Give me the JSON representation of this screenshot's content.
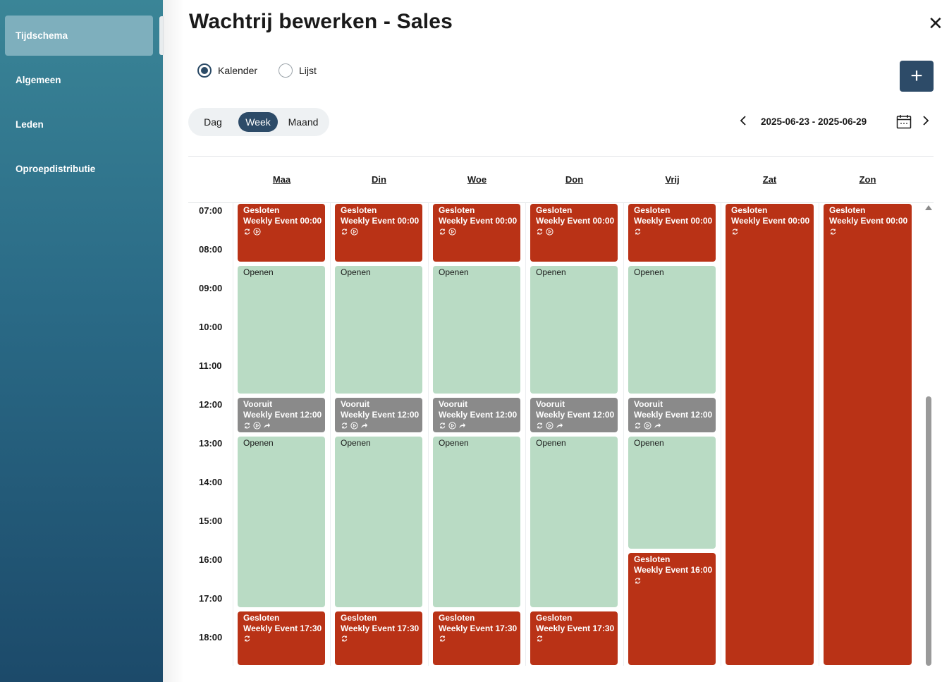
{
  "sidebar": {
    "items": [
      {
        "label": "Tijdschema",
        "active": true
      },
      {
        "label": "Algemeen",
        "active": false
      },
      {
        "label": "Leden",
        "active": false
      },
      {
        "label": "Oproepdistributie",
        "active": false
      }
    ]
  },
  "header": {
    "title": "Wachtrij bewerken - Sales",
    "close_icon": "close-icon"
  },
  "view_mode": {
    "options": [
      {
        "label": "Kalender",
        "checked": true
      },
      {
        "label": "Lijst",
        "checked": false
      }
    ]
  },
  "add_button": {
    "icon": "plus-icon"
  },
  "range_toggle": {
    "options": [
      {
        "label": "Dag",
        "active": false
      },
      {
        "label": "Week",
        "active": true
      },
      {
        "label": "Maand",
        "active": false
      }
    ]
  },
  "date_nav": {
    "range": "2025-06-23 - 2025-06-29",
    "prev_icon": "chevron-left-icon",
    "next_icon": "chevron-right-icon",
    "calendar_icon": "calendar-icon"
  },
  "calendar": {
    "days": [
      "Maa",
      "Din",
      "Woe",
      "Don",
      "Vrij",
      "Zat",
      "Zon"
    ],
    "hours": [
      "07:00",
      "08:00",
      "09:00",
      "10:00",
      "11:00",
      "12:00",
      "13:00",
      "14:00",
      "15:00",
      "16:00",
      "17:00",
      "18:00"
    ],
    "start_hour": 7,
    "events": [
      {
        "day": 0,
        "start": 7,
        "end": 8.6,
        "type": "closed",
        "title": "Gesloten",
        "subtitle": "Weekly Event 00:00",
        "icons": [
          "repeat-icon",
          "play-circle-icon"
        ]
      },
      {
        "day": 0,
        "start": 8.6,
        "end": 12.0,
        "type": "open",
        "title": "Openen",
        "subtitle": "",
        "icons": []
      },
      {
        "day": 0,
        "start": 12.0,
        "end": 13.0,
        "type": "pre",
        "title": "Vooruit",
        "subtitle": "Weekly Event 12:00",
        "icons": [
          "repeat-icon",
          "play-circle-icon",
          "forward-icon"
        ]
      },
      {
        "day": 0,
        "start": 13.0,
        "end": 17.5,
        "type": "open",
        "title": "Openen",
        "subtitle": "",
        "icons": []
      },
      {
        "day": 0,
        "start": 17.5,
        "end": 19.0,
        "type": "closed",
        "title": "Gesloten",
        "subtitle": "Weekly Event 17:30",
        "icons": [
          "repeat-icon"
        ]
      },
      {
        "day": 1,
        "start": 7,
        "end": 8.6,
        "type": "closed",
        "title": "Gesloten",
        "subtitle": "Weekly Event 00:00",
        "icons": [
          "repeat-icon",
          "play-circle-icon"
        ]
      },
      {
        "day": 1,
        "start": 8.6,
        "end": 12.0,
        "type": "open",
        "title": "Openen",
        "subtitle": "",
        "icons": []
      },
      {
        "day": 1,
        "start": 12.0,
        "end": 13.0,
        "type": "pre",
        "title": "Vooruit",
        "subtitle": "Weekly Event 12:00",
        "icons": [
          "repeat-icon",
          "play-circle-icon",
          "forward-icon"
        ]
      },
      {
        "day": 1,
        "start": 13.0,
        "end": 17.5,
        "type": "open",
        "title": "Openen",
        "subtitle": "",
        "icons": []
      },
      {
        "day": 1,
        "start": 17.5,
        "end": 19.0,
        "type": "closed",
        "title": "Gesloten",
        "subtitle": "Weekly Event 17:30",
        "icons": [
          "repeat-icon"
        ]
      },
      {
        "day": 2,
        "start": 7,
        "end": 8.6,
        "type": "closed",
        "title": "Gesloten",
        "subtitle": "Weekly Event 00:00",
        "icons": [
          "repeat-icon",
          "play-circle-icon"
        ]
      },
      {
        "day": 2,
        "start": 8.6,
        "end": 12.0,
        "type": "open",
        "title": "Openen",
        "subtitle": "",
        "icons": []
      },
      {
        "day": 2,
        "start": 12.0,
        "end": 13.0,
        "type": "pre",
        "title": "Vooruit",
        "subtitle": "Weekly Event 12:00",
        "icons": [
          "repeat-icon",
          "play-circle-icon",
          "forward-icon"
        ]
      },
      {
        "day": 2,
        "start": 13.0,
        "end": 17.5,
        "type": "open",
        "title": "Openen",
        "subtitle": "",
        "icons": []
      },
      {
        "day": 2,
        "start": 17.5,
        "end": 19.0,
        "type": "closed",
        "title": "Gesloten",
        "subtitle": "Weekly Event 17:30",
        "icons": [
          "repeat-icon"
        ]
      },
      {
        "day": 3,
        "start": 7,
        "end": 8.6,
        "type": "closed",
        "title": "Gesloten",
        "subtitle": "Weekly Event 00:00",
        "icons": [
          "repeat-icon",
          "play-circle-icon"
        ]
      },
      {
        "day": 3,
        "start": 8.6,
        "end": 12.0,
        "type": "open",
        "title": "Openen",
        "subtitle": "",
        "icons": []
      },
      {
        "day": 3,
        "start": 12.0,
        "end": 13.0,
        "type": "pre",
        "title": "Vooruit",
        "subtitle": "Weekly Event 12:00",
        "icons": [
          "repeat-icon",
          "play-circle-icon",
          "forward-icon"
        ]
      },
      {
        "day": 3,
        "start": 13.0,
        "end": 17.5,
        "type": "open",
        "title": "Openen",
        "subtitle": "",
        "icons": []
      },
      {
        "day": 3,
        "start": 17.5,
        "end": 19.0,
        "type": "closed",
        "title": "Gesloten",
        "subtitle": "Weekly Event 17:30",
        "icons": [
          "repeat-icon"
        ]
      },
      {
        "day": 4,
        "start": 7,
        "end": 8.6,
        "type": "closed",
        "title": "Gesloten",
        "subtitle": "Weekly Event 00:00",
        "icons": [
          "repeat-icon"
        ]
      },
      {
        "day": 4,
        "start": 8.6,
        "end": 12.0,
        "type": "open",
        "title": "Openen",
        "subtitle": "",
        "icons": []
      },
      {
        "day": 4,
        "start": 12.0,
        "end": 13.0,
        "type": "pre",
        "title": "Vooruit",
        "subtitle": "Weekly Event 12:00",
        "icons": [
          "repeat-icon",
          "play-circle-icon",
          "forward-icon"
        ]
      },
      {
        "day": 4,
        "start": 13.0,
        "end": 16.0,
        "type": "open",
        "title": "Openen",
        "subtitle": "",
        "icons": []
      },
      {
        "day": 4,
        "start": 16.0,
        "end": 19.0,
        "type": "closed",
        "title": "Gesloten",
        "subtitle": "Weekly Event 16:00",
        "icons": [
          "repeat-icon"
        ]
      },
      {
        "day": 5,
        "start": 7,
        "end": 19.0,
        "type": "closed",
        "title": "Gesloten",
        "subtitle": "Weekly Event 00:00",
        "icons": [
          "repeat-icon"
        ]
      },
      {
        "day": 6,
        "start": 7,
        "end": 19.0,
        "type": "closed",
        "title": "Gesloten",
        "subtitle": "Weekly Event 00:00",
        "icons": [
          "repeat-icon"
        ]
      }
    ]
  },
  "colors": {
    "closed": "#b93216",
    "open": "#b9dbc4",
    "pre": "#8a8a8a",
    "accent": "#2d4b68"
  }
}
